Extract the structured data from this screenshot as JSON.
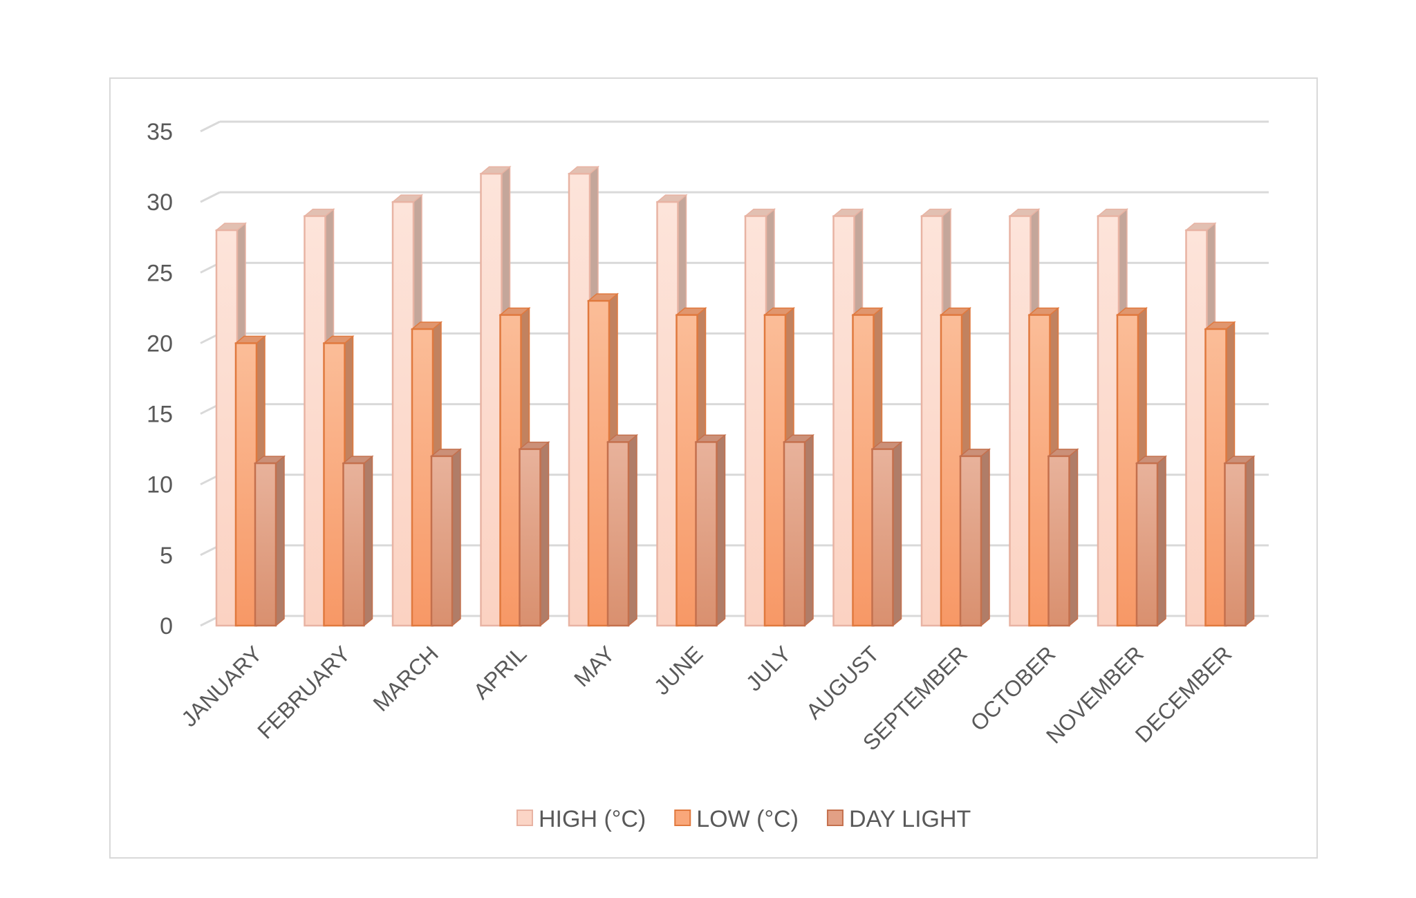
{
  "chart_data": {
    "type": "bar",
    "categories": [
      "JANUARY",
      "FEBRUARY",
      "MARCH",
      "APRIL",
      "MAY",
      "JUNE",
      "JULY",
      "AUGUST",
      "SEPTEMBER",
      "OCTOBER",
      "NOVEMBER",
      "DECEMBER"
    ],
    "series": [
      {
        "name": "HIGH (°C)",
        "values": [
          28,
          29,
          30,
          32,
          32,
          30,
          29,
          29,
          29,
          29,
          29,
          28
        ],
        "color": "#fbd5c6"
      },
      {
        "name": "LOW (°C)",
        "values": [
          20,
          20,
          21,
          22,
          23,
          22,
          22,
          22,
          22,
          22,
          22,
          21
        ],
        "color": "#f9a77a"
      },
      {
        "name": "DAY LIGHT",
        "values": [
          11.5,
          11.5,
          12,
          12.5,
          13,
          13,
          13,
          12.5,
          12,
          12,
          11.5,
          11.5
        ],
        "color": "#e2a085"
      }
    ],
    "ylim": [
      0,
      35
    ],
    "yticks": [
      "0",
      "5",
      "10",
      "15",
      "20",
      "25",
      "30",
      "35"
    ],
    "grid": true,
    "legend_position": "bottom",
    "three_d": true
  }
}
